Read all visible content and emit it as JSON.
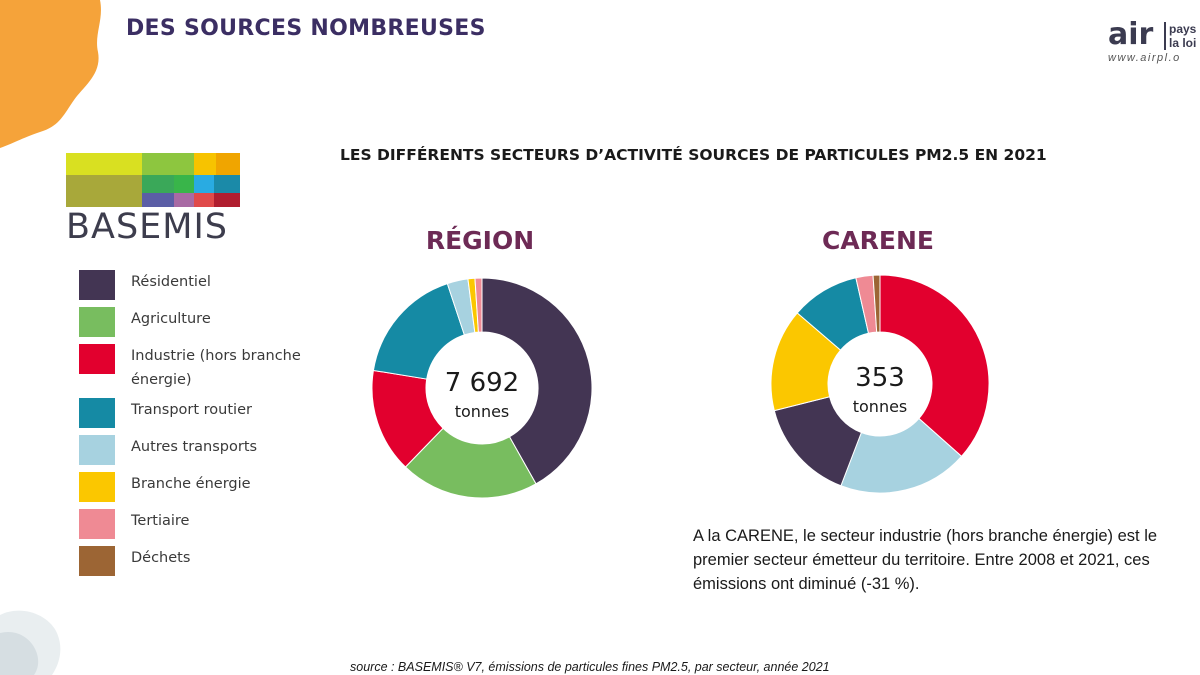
{
  "header": {
    "title": "DES SOURCES NOMBREUSES"
  },
  "brand": {
    "air": "air",
    "name": "pays\nla loi",
    "url": "www.airpl.o"
  },
  "basemis": {
    "wordmark": "BASEMIS",
    "mosaic_colors": [
      "#d9e021",
      "#8dc63f",
      "#f7c300",
      "#f0a500",
      "#a8a83a",
      "#3aa859",
      "#39b54a",
      "#29abe2",
      "#1b8aa8",
      "#5b5ea6",
      "#a86aa4",
      "#e04a4a",
      "#b01e2f"
    ]
  },
  "legend": {
    "items": [
      {
        "label": "Résidentiel",
        "color": "#433553"
      },
      {
        "label": "Agriculture",
        "color": "#78bd5f"
      },
      {
        "label": "Industrie (hors branche énergie)",
        "color": "#e2002e"
      },
      {
        "label": "Transport routier",
        "color": "#158aa4"
      },
      {
        "label": "Autres transports",
        "color": "#a7d2e0"
      },
      {
        "label": "Branche énergie",
        "color": "#fbc700"
      },
      {
        "label": "Tertiaire",
        "color": "#ef8a94"
      },
      {
        "label": "Déchets",
        "color": "#9c6534"
      }
    ]
  },
  "chart_data": {
    "type": "pie",
    "title": "LES DIFFÉRENTS SECTEURS D’ACTIVITÉ SOURCES DE PARTICULES PM2.5 EN 2021",
    "categories": [
      "Résidentiel",
      "Agriculture",
      "Industrie (hors branche énergie)",
      "Transport routier",
      "Autres transports",
      "Branche énergie",
      "Tertiaire",
      "Déchets"
    ],
    "charts": [
      {
        "name": "RÉGION",
        "total": "7 692",
        "unit": "tonnes",
        "values": [
          41,
          20,
          15,
          17,
          3,
          1,
          1,
          0
        ],
        "slice_order": [
          0,
          1,
          2,
          3,
          4,
          5,
          6
        ]
      },
      {
        "name": "CARENE",
        "total": "353",
        "unit": "tonnes",
        "values": [
          15,
          0,
          36,
          10,
          19,
          15,
          2.5,
          1
        ],
        "slice_order": [
          2,
          4,
          0,
          5,
          3,
          6,
          7
        ]
      }
    ]
  },
  "note": "A la CARENE, le secteur industrie (hors branche énergie) est le premier secteur émetteur du territoire. Entre 2008 et 2021, ces émissions ont diminué (-31 %).",
  "source": "source : BASEMIS® V7, émissions de particules fines PM2.5, par secteur, année 2021"
}
